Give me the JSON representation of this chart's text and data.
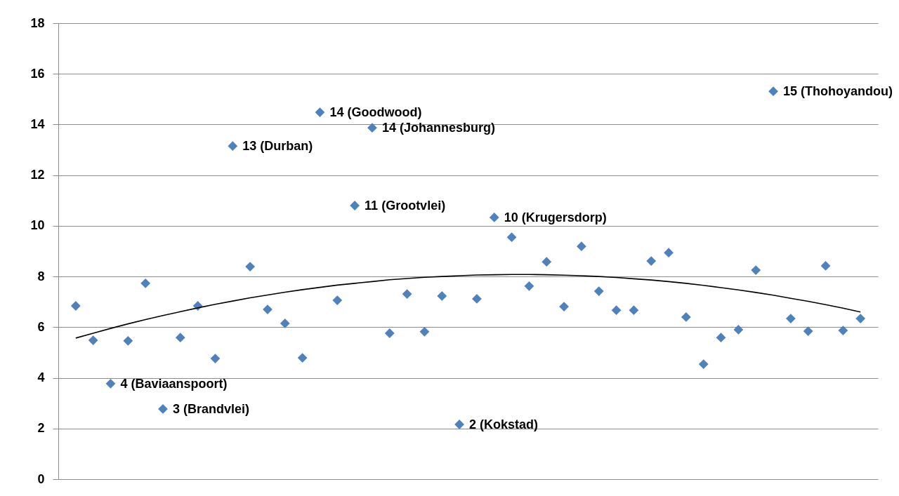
{
  "chart_data": {
    "type": "scatter",
    "categories": [
      null,
      null,
      null,
      null,
      null,
      null,
      null,
      null,
      null,
      null,
      null,
      null,
      null,
      null,
      null,
      null,
      null,
      null,
      null,
      null,
      null,
      null,
      null,
      null,
      null,
      null,
      null,
      null,
      null,
      null,
      null,
      null,
      null,
      null,
      null,
      null,
      null,
      null,
      null,
      null,
      null,
      null,
      null,
      null,
      null,
      null
    ],
    "series": [
      {
        "color": "#4f81bd",
        "marker": "diamond",
        "values": [
          6.84,
          5.48,
          3.77,
          5.46,
          7.73,
          2.77,
          5.59,
          6.84,
          4.76,
          13.15,
          8.39,
          6.7,
          6.15,
          4.79,
          14.48,
          7.06,
          10.8,
          13.87,
          5.76,
          7.31,
          5.82,
          7.23,
          2.16,
          7.12,
          10.33,
          9.55,
          7.62,
          8.58,
          6.81,
          9.19,
          7.42,
          6.67,
          6.67,
          8.61,
          8.94,
          6.4,
          4.54,
          5.59,
          5.9,
          8.25,
          15.31,
          6.34,
          5.84,
          8.42,
          5.87,
          6.34
        ],
        "value_labels": [
          null,
          null,
          "4 (Baviaanspoort)",
          null,
          null,
          "3 (Brandvlei)",
          null,
          null,
          null,
          "13 (Durban)",
          null,
          null,
          null,
          null,
          "14 (Goodwood)",
          null,
          "11 (Grootvlei)",
          "14 (Johannesburg)",
          null,
          null,
          null,
          null,
          "2 (Kokstad)",
          null,
          "10 (Krugersdorp)",
          null,
          null,
          null,
          null,
          null,
          null,
          null,
          null,
          null,
          null,
          null,
          null,
          null,
          null,
          null,
          "15 (Thohoyandou)",
          null,
          null,
          null,
          null,
          null
        ]
      },
      {
        "type": "line",
        "color": "#000000",
        "line_style": "solid",
        "values": [
          5.57,
          5.76,
          5.95,
          6.13,
          6.3,
          6.46,
          6.61,
          6.76,
          6.9,
          7.03,
          7.16,
          7.27,
          7.38,
          7.48,
          7.57,
          7.66,
          7.73,
          7.8,
          7.87,
          7.92,
          7.97,
          8.0,
          8.03,
          8.06,
          8.07,
          8.08,
          8.08,
          8.07,
          8.05,
          8.03,
          8.0,
          7.96,
          7.91,
          7.86,
          7.8,
          7.73,
          7.65,
          7.56,
          7.47,
          7.37,
          7.26,
          7.14,
          7.02,
          6.89,
          6.75,
          6.6
        ]
      }
    ],
    "ylim": [
      0,
      18
    ],
    "yticks": [
      0,
      2,
      4,
      6,
      8,
      10,
      12,
      14,
      16,
      18
    ],
    "grid": "y",
    "tick_labels": "y"
  }
}
